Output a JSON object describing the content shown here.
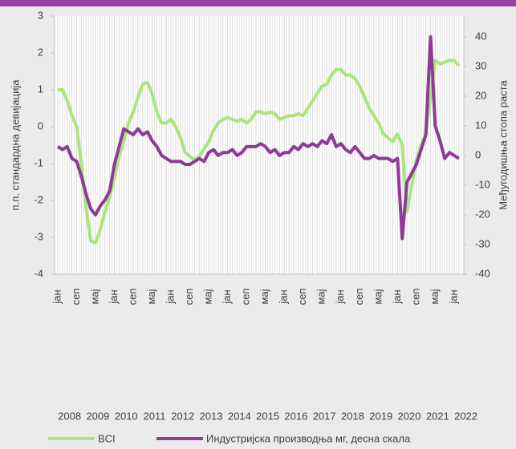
{
  "chart_data": {
    "type": "line",
    "categories": [
      "јан",
      null,
      null,
      null,
      "сеп",
      null,
      null,
      null,
      "мај",
      null,
      null,
      null,
      "јан",
      null,
      null,
      null,
      "сеп",
      null,
      null,
      null,
      "мај",
      null,
      null,
      null,
      "јан",
      null,
      null,
      null,
      "сеп",
      null,
      null,
      null,
      "мај",
      null,
      null,
      null,
      "јан",
      null,
      null,
      null,
      "сеп",
      null,
      null,
      null,
      "мај",
      null,
      null,
      null,
      "јан",
      null,
      null,
      null,
      "сеп",
      null,
      null,
      null,
      "мај",
      null,
      null,
      null,
      "јан",
      null,
      null,
      null,
      "сеп",
      null,
      null,
      null,
      "мај",
      null,
      null,
      null,
      "јан",
      null,
      null,
      null,
      "сеп",
      null,
      null,
      null,
      "мај",
      null,
      null,
      null,
      "јан",
      null
    ],
    "years": [
      2008,
      2009,
      2010,
      2011,
      2012,
      2013,
      2014,
      2015,
      2016,
      2017,
      2018,
      2019,
      2020,
      2021,
      2022
    ],
    "ylabel": "п.п. стандардна девијација",
    "y2label": "Међугодишња стопа раста",
    "ylim": [
      -4,
      3
    ],
    "yticks": [
      -4,
      -3,
      -2,
      -1,
      0,
      1,
      2,
      3
    ],
    "y2lim": [
      -40,
      47
    ],
    "y2ticks": [
      -40,
      -30,
      -20,
      -10,
      0,
      10,
      20,
      30,
      40
    ],
    "grid": "x",
    "series": [
      {
        "name": "BCI",
        "color": "#a9e67c",
        "values": [
          1.0,
          1.0,
          0.7,
          0.3,
          0.0,
          -1.0,
          -2.2,
          -3.1,
          -3.15,
          -2.8,
          -2.3,
          -1.9,
          -1.4,
          -0.8,
          -0.4,
          0.1,
          0.4,
          0.8,
          1.15,
          1.2,
          0.9,
          0.4,
          0.1,
          0.1,
          0.2,
          0.0,
          -0.3,
          -0.7,
          -0.8,
          -0.9,
          -0.8,
          -0.6,
          -0.4,
          -0.1,
          0.1,
          0.2,
          0.25,
          0.2,
          0.15,
          0.2,
          0.1,
          0.2,
          0.4,
          0.4,
          0.35,
          0.4,
          0.35,
          0.2,
          0.25,
          0.3,
          0.3,
          0.35,
          0.3,
          0.5,
          0.7,
          0.9,
          1.1,
          1.15,
          1.4,
          1.55,
          1.55,
          1.4,
          1.4,
          1.3,
          1.1,
          0.8,
          0.5,
          0.3,
          0.1,
          -0.2,
          -0.3,
          -0.4,
          -0.2,
          -0.5,
          -2.3,
          -1.6,
          -0.9,
          -0.5,
          -0.2,
          0.8,
          1.8,
          1.7,
          1.75,
          1.8,
          1.8,
          1.65
        ]
      },
      {
        "name": "Индустријска производња мг, десна скала",
        "color": "#8e3a96",
        "axis": "y2",
        "values": [
          3,
          2,
          3,
          -1,
          -2,
          -7,
          -13,
          -18,
          -20,
          -17,
          -15,
          -12,
          -3,
          3,
          9,
          8,
          7,
          9,
          7,
          8,
          5,
          3,
          0,
          -1,
          -2,
          -2,
          -2,
          -3,
          -3,
          -2,
          -1,
          -2,
          1,
          2,
          0,
          1,
          1,
          2,
          0,
          1,
          3,
          3,
          3,
          4,
          3,
          1,
          2,
          0,
          1,
          1,
          3,
          2,
          4,
          3,
          4,
          3,
          5,
          4,
          7,
          3,
          4,
          2,
          1,
          3,
          1,
          -1,
          -1,
          0,
          -1,
          -1,
          -1,
          -2,
          -1,
          -28,
          -9,
          -6,
          -3,
          2,
          7,
          40,
          10,
          5,
          -1,
          1,
          0,
          -1
        ]
      }
    ]
  }
}
